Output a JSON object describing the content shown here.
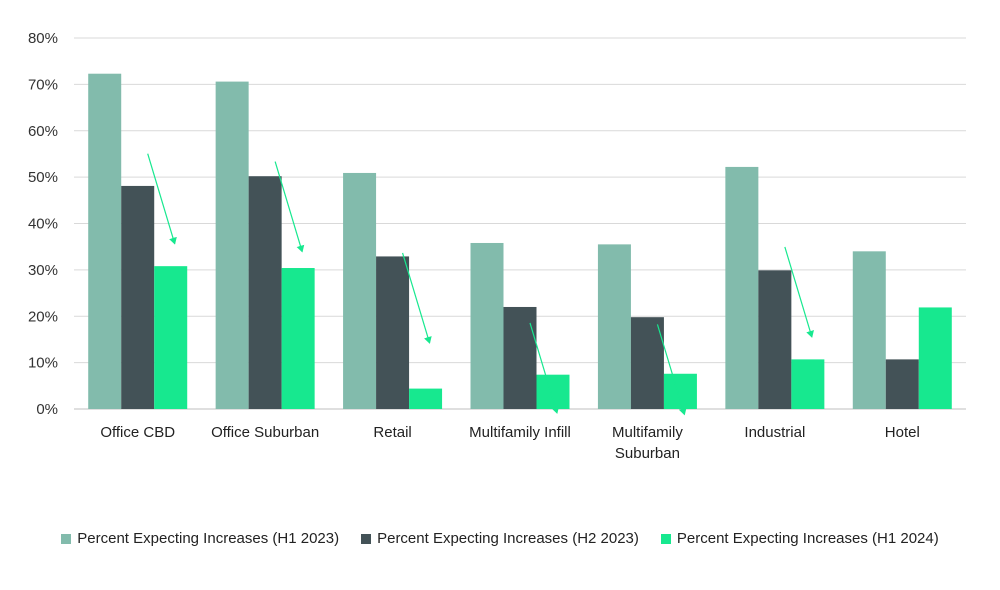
{
  "chart_data": {
    "type": "bar",
    "title": "",
    "xlabel": "",
    "ylabel": "",
    "ylim": [
      0,
      80
    ],
    "yticks": [
      "0%",
      "10%",
      "20%",
      "30%",
      "40%",
      "50%",
      "60%",
      "70%",
      "80%"
    ],
    "ytick_values": [
      0,
      10,
      20,
      30,
      40,
      50,
      60,
      70,
      80
    ],
    "categories": [
      [
        "Office CBD"
      ],
      [
        "Office Suburban"
      ],
      [
        "Retail"
      ],
      [
        "Multifamily Infill"
      ],
      [
        "Multifamily",
        "Suburban"
      ],
      [
        "Industrial"
      ],
      [
        "Hotel"
      ]
    ],
    "series": [
      {
        "name": "Percent Expecting Increases (H1 2023)",
        "color": "#82bbac",
        "values": [
          72.3,
          70.6,
          50.9,
          35.8,
          35.5,
          52.2,
          34.0
        ]
      },
      {
        "name": "Percent Expecting Increases (H2 2023)",
        "color": "#435257",
        "values": [
          48.1,
          50.2,
          32.9,
          22.0,
          19.8,
          29.9,
          10.7
        ]
      },
      {
        "name": "Percent Expecting Increases (H1 2024)",
        "color": "#17e88f",
        "values": [
          30.8,
          30.4,
          4.4,
          7.4,
          7.6,
          10.7,
          21.9
        ]
      }
    ],
    "trend_arrows": [
      "down",
      "down",
      "down",
      "down",
      "down",
      "down",
      "none"
    ],
    "grid": true,
    "legend_position": "bottom"
  }
}
